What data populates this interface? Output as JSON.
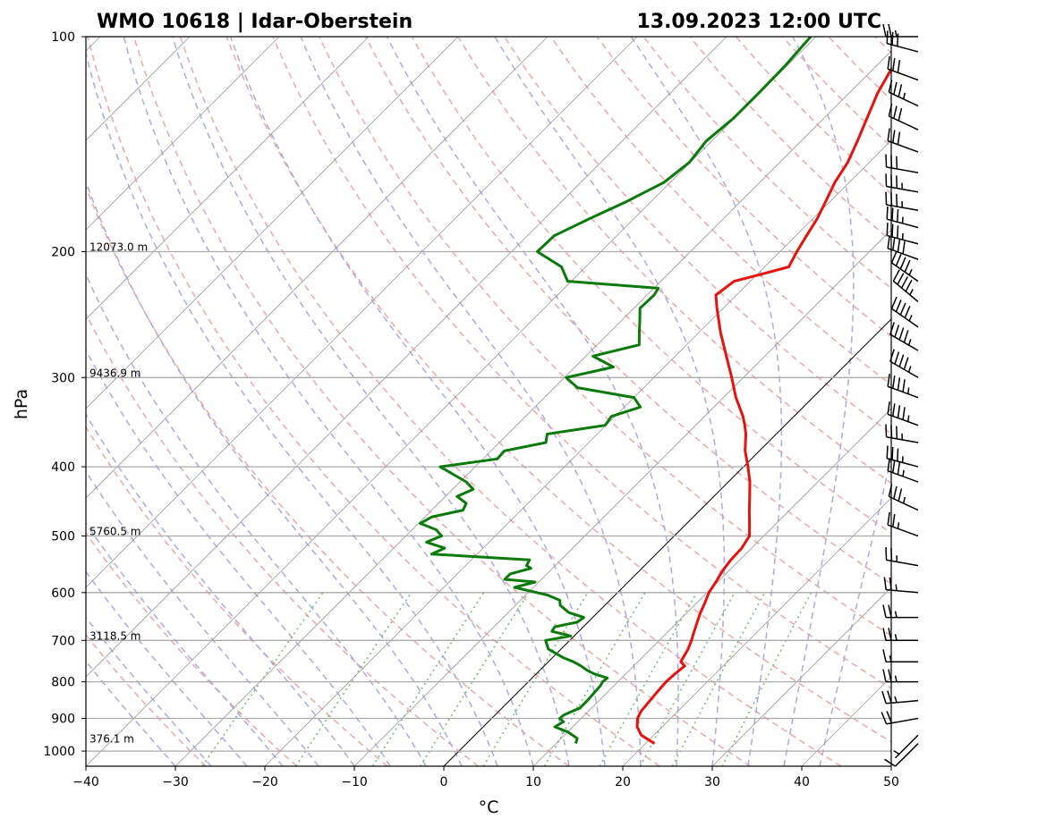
{
  "header": {
    "station": "WMO 10618 | Idar-Oberstein",
    "datetime": "13.09.2023 12:00 UTC"
  },
  "chart_data": {
    "type": "skew-t log-p",
    "xlabel": "°C",
    "ylabel": "hPa",
    "xlim": [
      -40,
      50
    ],
    "ylim": [
      1050,
      100
    ],
    "x_ticks": [
      -40,
      -30,
      -20,
      -10,
      0,
      10,
      20,
      30,
      40,
      50
    ],
    "x_tick_labels": [
      "−40",
      "−30",
      "−20",
      "−10",
      "0",
      "10",
      "20",
      "30",
      "40",
      "50"
    ],
    "y_ticks": [
      100,
      200,
      300,
      400,
      500,
      600,
      700,
      800,
      900,
      1000
    ],
    "y_tick_labels": [
      "100",
      "200",
      "300",
      "400",
      "500",
      "600",
      "700",
      "800",
      "900",
      "1000"
    ],
    "grid": true,
    "height_labels": [
      {
        "p": 200,
        "label": "12073.0 m"
      },
      {
        "p": 300,
        "label": "9436.9 m"
      },
      {
        "p": 500,
        "label": "5760.5 m"
      },
      {
        "p": 700,
        "label": "3118.5 m"
      },
      {
        "p": 976,
        "label": "376.1 m"
      }
    ],
    "colors": {
      "temperature": "#e8120c",
      "dewpoint": "#0a7a0a",
      "dry_adiabat": "#f4a5a5",
      "moist_adiabat": "#a9a9ec",
      "mixing_ratio": "#6cbf6c",
      "isotherm": "#9a9a9a",
      "isobar": "#aaaaaa"
    },
    "series": [
      {
        "key": "temperature",
        "points": [
          [
            976,
            21.0
          ],
          [
            950,
            18.6
          ],
          [
            925,
            17.2
          ],
          [
            900,
            16.3
          ],
          [
            880,
            15.9
          ],
          [
            850,
            15.7
          ],
          [
            820,
            15.5
          ],
          [
            800,
            15.4
          ],
          [
            780,
            15.5
          ],
          [
            760,
            15.7
          ],
          [
            750,
            14.8
          ],
          [
            740,
            14.6
          ],
          [
            720,
            14.2
          ],
          [
            700,
            13.6
          ],
          [
            680,
            12.9
          ],
          [
            660,
            12.2
          ],
          [
            640,
            11.5
          ],
          [
            620,
            10.9
          ],
          [
            600,
            10.2
          ],
          [
            580,
            9.8
          ],
          [
            560,
            9.3
          ],
          [
            540,
            9.0
          ],
          [
            520,
            8.9
          ],
          [
            500,
            8.4
          ],
          [
            480,
            7.0
          ],
          [
            460,
            5.5
          ],
          [
            440,
            4.0
          ],
          [
            420,
            2.4
          ],
          [
            400,
            0.5
          ],
          [
            380,
            -1.6
          ],
          [
            360,
            -3.4
          ],
          [
            350,
            -4.5
          ],
          [
            340,
            -5.7
          ],
          [
            320,
            -8.6
          ],
          [
            300,
            -11.3
          ],
          [
            280,
            -14.3
          ],
          [
            260,
            -17.5
          ],
          [
            240,
            -20.7
          ],
          [
            230,
            -22.3
          ],
          [
            220,
            -21.8
          ],
          [
            215,
            -19.5
          ],
          [
            210,
            -17.3
          ],
          [
            200,
            -18.1
          ],
          [
            190,
            -18.8
          ],
          [
            180,
            -19.5
          ],
          [
            170,
            -20.5
          ],
          [
            160,
            -21.6
          ],
          [
            150,
            -22.4
          ],
          [
            140,
            -23.7
          ],
          [
            130,
            -25.2
          ],
          [
            120,
            -26.8
          ],
          [
            110,
            -28.1
          ],
          [
            100,
            -29.8
          ]
        ]
      },
      {
        "key": "dewpoint",
        "points": [
          [
            976,
            12.2
          ],
          [
            960,
            11.8
          ],
          [
            940,
            10.0
          ],
          [
            925,
            8.0
          ],
          [
            910,
            8.4
          ],
          [
            900,
            7.6
          ],
          [
            890,
            7.7
          ],
          [
            870,
            8.7
          ],
          [
            850,
            8.7
          ],
          [
            830,
            8.6
          ],
          [
            810,
            8.5
          ],
          [
            800,
            8.3
          ],
          [
            790,
            8.4
          ],
          [
            780,
            6.5
          ],
          [
            770,
            5.2
          ],
          [
            760,
            4.1
          ],
          [
            750,
            2.8
          ],
          [
            740,
            1.2
          ],
          [
            720,
            -1.4
          ],
          [
            700,
            -2.7
          ],
          [
            690,
            -0.4
          ],
          [
            680,
            -3.0
          ],
          [
            670,
            -3.2
          ],
          [
            660,
            -1.2
          ],
          [
            650,
            -1.0
          ],
          [
            640,
            -3.2
          ],
          [
            625,
            -5.0
          ],
          [
            615,
            -5.6
          ],
          [
            605,
            -7.5
          ],
          [
            590,
            -12.1
          ],
          [
            580,
            -10.4
          ],
          [
            575,
            -14.1
          ],
          [
            565,
            -14.1
          ],
          [
            555,
            -12.4
          ],
          [
            550,
            -13.2
          ],
          [
            540,
            -13.5
          ],
          [
            530,
            -25.1
          ],
          [
            520,
            -24.3
          ],
          [
            510,
            -27.0
          ],
          [
            500,
            -26.0
          ],
          [
            490,
            -27.3
          ],
          [
            480,
            -29.8
          ],
          [
            470,
            -29.2
          ],
          [
            460,
            -26.5
          ],
          [
            450,
            -26.9
          ],
          [
            440,
            -28.7
          ],
          [
            430,
            -27.7
          ],
          [
            420,
            -29.3
          ],
          [
            400,
            -33.9
          ],
          [
            390,
            -28.4
          ],
          [
            380,
            -28.5
          ],
          [
            370,
            -24.8
          ],
          [
            360,
            -25.6
          ],
          [
            350,
            -20.1
          ],
          [
            340,
            -20.4
          ],
          [
            330,
            -18.2
          ],
          [
            320,
            -20.0
          ],
          [
            310,
            -27.4
          ],
          [
            300,
            -29.8
          ],
          [
            290,
            -25.7
          ],
          [
            280,
            -29.2
          ],
          [
            270,
            -25.3
          ],
          [
            260,
            -26.6
          ],
          [
            250,
            -27.9
          ],
          [
            240,
            -29.3
          ],
          [
            230,
            -29.2
          ],
          [
            225,
            -29.5
          ],
          [
            220,
            -40.4
          ],
          [
            210,
            -42.7
          ],
          [
            200,
            -47.1
          ],
          [
            190,
            -47.0
          ],
          [
            180,
            -45.0
          ],
          [
            170,
            -42.7
          ],
          [
            160,
            -40.7
          ],
          [
            150,
            -40.1
          ],
          [
            140,
            -40.6
          ],
          [
            130,
            -40.1
          ],
          [
            120,
            -40.1
          ],
          [
            110,
            -40.2
          ],
          [
            100,
            -40.6
          ]
        ]
      }
    ],
    "wind_barbs": [
      {
        "p": 976,
        "dir": 225,
        "speed": 10
      },
      {
        "p": 950,
        "dir": 225,
        "speed": 5
      },
      {
        "p": 900,
        "dir": 260,
        "speed": 20
      },
      {
        "p": 850,
        "dir": 265,
        "speed": 25
      },
      {
        "p": 800,
        "dir": 270,
        "speed": 25
      },
      {
        "p": 750,
        "dir": 270,
        "speed": 15
      },
      {
        "p": 700,
        "dir": 270,
        "speed": 25
      },
      {
        "p": 650,
        "dir": 270,
        "speed": 25
      },
      {
        "p": 600,
        "dir": 275,
        "speed": 25
      },
      {
        "p": 550,
        "dir": 280,
        "speed": 25
      },
      {
        "p": 500,
        "dir": 290,
        "speed": 25
      },
      {
        "p": 460,
        "dir": 295,
        "speed": 35
      },
      {
        "p": 420,
        "dir": 290,
        "speed": 35
      },
      {
        "p": 400,
        "dir": 285,
        "speed": 35
      },
      {
        "p": 370,
        "dir": 280,
        "speed": 35
      },
      {
        "p": 350,
        "dir": 290,
        "speed": 45
      },
      {
        "p": 320,
        "dir": 290,
        "speed": 45
      },
      {
        "p": 300,
        "dir": 300,
        "speed": 45
      },
      {
        "p": 275,
        "dir": 300,
        "speed": 45
      },
      {
        "p": 255,
        "dir": 305,
        "speed": 45
      },
      {
        "p": 235,
        "dir": 310,
        "speed": 45
      },
      {
        "p": 220,
        "dir": 305,
        "speed": 45
      },
      {
        "p": 205,
        "dir": 290,
        "speed": 40
      },
      {
        "p": 195,
        "dir": 285,
        "speed": 35
      },
      {
        "p": 185,
        "dir": 285,
        "speed": 35
      },
      {
        "p": 175,
        "dir": 280,
        "speed": 35
      },
      {
        "p": 165,
        "dir": 280,
        "speed": 35
      },
      {
        "p": 155,
        "dir": 280,
        "speed": 30
      },
      {
        "p": 145,
        "dir": 290,
        "speed": 30
      },
      {
        "p": 135,
        "dir": 295,
        "speed": 30
      },
      {
        "p": 125,
        "dir": 295,
        "speed": 35
      },
      {
        "p": 115,
        "dir": 290,
        "speed": 30
      },
      {
        "p": 105,
        "dir": 285,
        "speed": 30
      },
      {
        "p": 100,
        "dir": 270,
        "speed": 25
      }
    ]
  }
}
